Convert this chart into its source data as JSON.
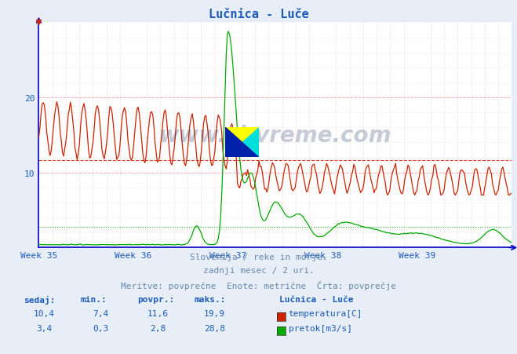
{
  "title": "Lučnica - Luče",
  "title_color": "#1a5ab8",
  "bg_color": "#e8eef8",
  "plot_bg_color": "#ffffff",
  "grid_major_color": "#ff9999",
  "grid_minor_color": "#dddddd",
  "axis_color": "#0000cc",
  "tick_color": "#1a5ab8",
  "text_color": "#6688aa",
  "table_color": "#1a5ab8",
  "temp_color": "#cc2200",
  "flow_color": "#00aa00",
  "weeks": [
    "Week 35",
    "Week 36",
    "Week 37",
    "Week 38",
    "Week 39"
  ],
  "n_points": 420,
  "temp_min": 7.4,
  "temp_max": 19.9,
  "temp_avg": 11.6,
  "temp_current": 10.4,
  "flow_min": 0.3,
  "flow_max": 28.8,
  "flow_avg": 2.8,
  "flow_current": 3.4,
  "ymin": 0,
  "ymax": 30,
  "subtitle1": "Slovenija / reke in morje.",
  "subtitle2": "zadnji mesec / 2 uri.",
  "subtitle3": "Meritve: povprečne  Enote: metrične  Črta: povprečje",
  "legend_title": "Lučnica - Luče",
  "legend_temp": "temperatura[C]",
  "legend_flow": "pretok[m3/s]",
  "col1": "sedaj:",
  "col2": "min.:",
  "col3": "povpr.:",
  "col4": "maks.:"
}
